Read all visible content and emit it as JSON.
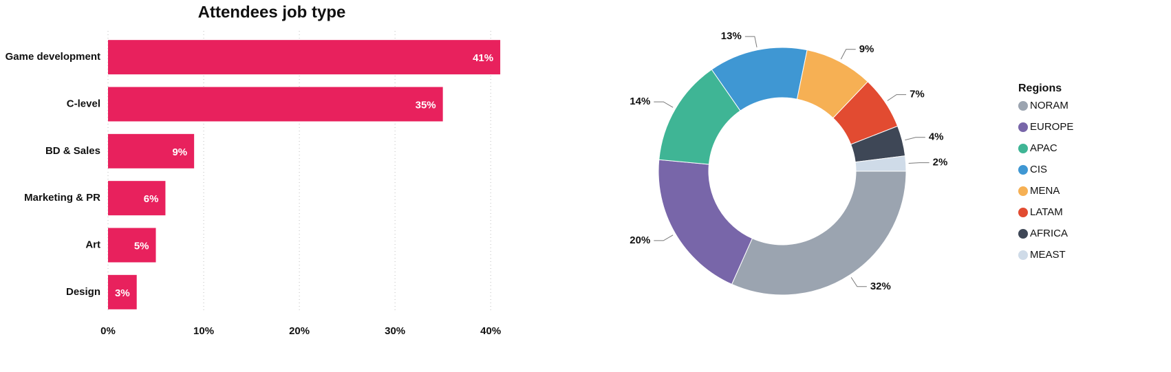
{
  "chart_data": [
    {
      "type": "hbar",
      "title": "Attendees job type",
      "categories": [
        "Game development",
        "C-level",
        "BD & Sales",
        "Marketing & PR",
        "Art",
        "Design"
      ],
      "values": [
        41,
        35,
        9,
        6,
        5,
        3
      ],
      "value_labels": [
        "41%",
        "35%",
        "9%",
        "6%",
        "5%",
        "3%"
      ],
      "color": "#e8215d",
      "xlim": [
        0,
        42
      ],
      "xticks": [
        {
          "value": 0,
          "label": "0%"
        },
        {
          "value": 10,
          "label": "10%"
        },
        {
          "value": 20,
          "label": "20%"
        },
        {
          "value": 30,
          "label": "30%"
        },
        {
          "value": 40,
          "label": "40%"
        }
      ],
      "grid": true
    },
    {
      "type": "donut",
      "legend_title": "Regions",
      "categories": [
        "NORAM",
        "EUROPE",
        "APAC",
        "CIS",
        "MENA",
        "LATAM",
        "AFRICA",
        "MEAST"
      ],
      "values": [
        32,
        20,
        14,
        13,
        9,
        7,
        4,
        2
      ],
      "value_labels": [
        "32%",
        "20%",
        "14%",
        "13%",
        "9%",
        "7%",
        "4%",
        "2%"
      ],
      "colors": [
        "#9ba4b0",
        "#7866a9",
        "#3fb595",
        "#3f97d3",
        "#f6b054",
        "#e24b31",
        "#3e4756",
        "#cfdbe8"
      ],
      "legend": "right"
    }
  ]
}
